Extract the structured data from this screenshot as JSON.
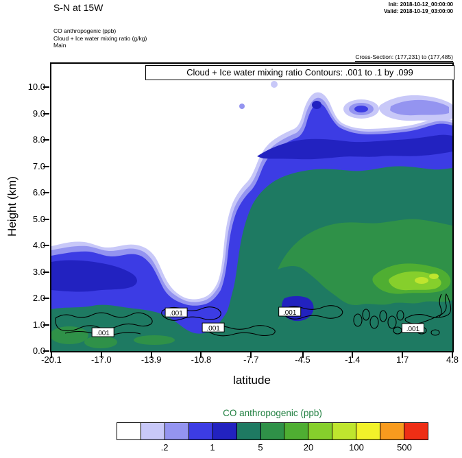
{
  "header": {
    "title": "S-N at 15W",
    "init": "Init: 2018-10-12_00:00:00",
    "valid": "Valid: 2018-10-19_03:00:00",
    "legend_lines": [
      "CO anthropogenic  (ppb)",
      "Cloud + Ice water mixing ratio  (g/kg)",
      "Main"
    ],
    "cross_section": "Cross-Section: (177,231) to (177,485)"
  },
  "plot": {
    "inner_title": "Cloud + Ice water mixing ratio Contours: .001 to .1 by .099"
  },
  "chart_data": {
    "type": "filled-contour-cross-section",
    "title": "S-N at 15W",
    "fill_field": {
      "name": "CO anthropogenic",
      "units": "ppb"
    },
    "line_field": {
      "name": "Cloud + Ice water mixing ratio",
      "units": "g/kg",
      "contour_spec": ".001 to .1 by .099",
      "levels": [
        0.001,
        0.1
      ]
    },
    "x": {
      "label": "latitude",
      "range": [
        -20.1,
        4.8
      ],
      "ticks": [
        "-20.1",
        "-17.0",
        "-13.9",
        "-10.8",
        "-7.7",
        "-4.5",
        "-1.4",
        "1.7",
        "4.8"
      ]
    },
    "y": {
      "label": "Height (km)",
      "range": [
        0.0,
        10.9
      ],
      "ticks": [
        "0.0",
        "1.0",
        "2.0",
        "3.0",
        "4.0",
        "5.0",
        "6.0",
        "7.0",
        "8.0",
        "9.0",
        "10.0"
      ]
    },
    "fill_levels_ppb": [
      0.1,
      0.2,
      0.5,
      1,
      2,
      5,
      10,
      20,
      50,
      100,
      200,
      500
    ],
    "fill_colors": [
      "#ffffff",
      "#c8c8f8",
      "#9494f0",
      "#3c3ce4",
      "#2222c0",
      "#1e7a62",
      "#2f9148",
      "#4fae32",
      "#86cf2c",
      "#bfe52e",
      "#f2f22a",
      "#f89b1e",
      "#ee2e15"
    ],
    "colorbar": {
      "title": "CO anthropogenic  (ppb)",
      "labels": [
        {
          "text": ".2",
          "boundary": 2
        },
        {
          "text": "1",
          "boundary": 4
        },
        {
          "text": "5",
          "boundary": 6
        },
        {
          "text": "20",
          "boundary": 8
        },
        {
          "text": "100",
          "boundary": 10
        },
        {
          "text": "500",
          "boundary": 12
        }
      ]
    },
    "contour_labels": [
      {
        "text": ".001",
        "lat": -16.9,
        "km": 0.7
      },
      {
        "text": ".001",
        "lat": -12.35,
        "km": 1.45
      },
      {
        "text": ".001",
        "lat": -10.05,
        "km": 0.88
      },
      {
        "text": ".001",
        "lat": -5.3,
        "km": 1.48
      },
      {
        "text": ".001",
        "lat": 2.35,
        "km": 0.86
      }
    ],
    "field_summary": [
      "Shallow CO layer (0.1-1 ppb edges, 1-2 ppb blue core near 2.5-3.5 km) south of lat -13, topping near 3.9 km",
      "Clean white notch between lat -13 and -10 from about 2 km up to 4 km",
      "Deep CO plume north of lat -10 reaching about 8.6 km, with 2-5 ppb teal interior from 2-7 km",
      "5-20 ppb green core between roughly 2 and 5 km north of lat -6",
      "20-100 ppb light-green maximum near lat 1 to 4.8 at 2.3-3.2 km",
      "0.5-1 ppb dark-blue band along plume top near 7.4-8.3 km",
      "Detached 0.1-1 ppb filaments between 9 and 10.5 km near lat -4 to 4.8",
      "Cloud + ice mixing ratio .001 g/kg wavy contours along 0.5-1.7 km across the whole section"
    ]
  }
}
